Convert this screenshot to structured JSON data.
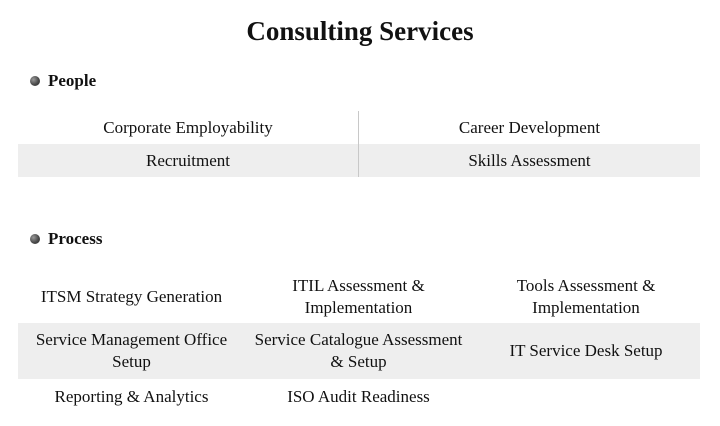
{
  "title": "Consulting Services",
  "sections": {
    "people": {
      "heading": "People",
      "rows": [
        [
          "Corporate Employability",
          "Career Development"
        ],
        [
          "Recruitment",
          "Skills Assessment"
        ]
      ]
    },
    "process": {
      "heading": "Process",
      "rows": [
        [
          "ITSM Strategy Generation",
          "ITIL Assessment & Implementation",
          "Tools Assessment & Implementation"
        ],
        [
          "Service Management Office Setup",
          "Service Catalogue Assessment & Setup",
          "IT Service Desk Setup"
        ],
        [
          "Reporting & Analytics",
          "ISO Audit Readiness",
          ""
        ]
      ]
    }
  },
  "colors": {
    "row_shade": "#eeeeee",
    "divider": "#c8c8c8",
    "text": "#111111"
  }
}
